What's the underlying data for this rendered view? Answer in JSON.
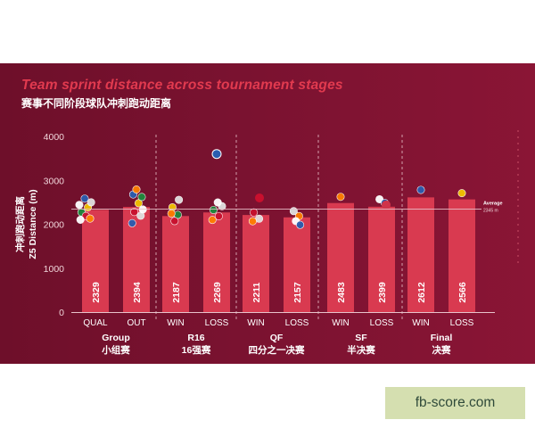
{
  "chart_data": {
    "type": "bar",
    "title": "Team sprint distance across tournament stages",
    "subtitle": "赛事不同阶段球队冲刺跑动距离",
    "ylabel": "Z5 Distance (m)",
    "ylabel_cn": "冲刺跑动距离",
    "ylim": [
      0,
      4000
    ],
    "yticks": [
      0,
      1000,
      2000,
      3000,
      4000
    ],
    "grid": false,
    "bar_color": "#d93a50",
    "groups": [
      {
        "name": "Group",
        "name_cn": "小组赛",
        "bars": [
          {
            "label": "QUAL",
            "value": 2329
          },
          {
            "label": "OUT",
            "value": 2394
          }
        ]
      },
      {
        "name": "R16",
        "name_cn": "16强赛",
        "bars": [
          {
            "label": "WIN",
            "value": 2187
          },
          {
            "label": "LOSS",
            "value": 2269
          }
        ]
      },
      {
        "name": "QF",
        "name_cn": "四分之一决赛",
        "bars": [
          {
            "label": "WIN",
            "value": 2211
          },
          {
            "label": "LOSS",
            "value": 2157
          }
        ]
      },
      {
        "name": "SF",
        "name_cn": "半决赛",
        "bars": [
          {
            "label": "WIN",
            "value": 2483
          },
          {
            "label": "LOSS",
            "value": 2399
          }
        ]
      },
      {
        "name": "Final",
        "name_cn": "决赛",
        "bars": [
          {
            "label": "WIN",
            "value": 2612
          },
          {
            "label": "LOSS",
            "value": 2566
          }
        ]
      }
    ],
    "average": {
      "label": "Average",
      "value_text": "2345 m",
      "value": 2345
    },
    "outlier": {
      "value": 3600
    }
  },
  "watermark": "fb-score.com",
  "colors": {
    "background": "#7a1230",
    "bar": "#d93a50",
    "title": "#e23a4f",
    "average_line": "#e8c3cb"
  }
}
